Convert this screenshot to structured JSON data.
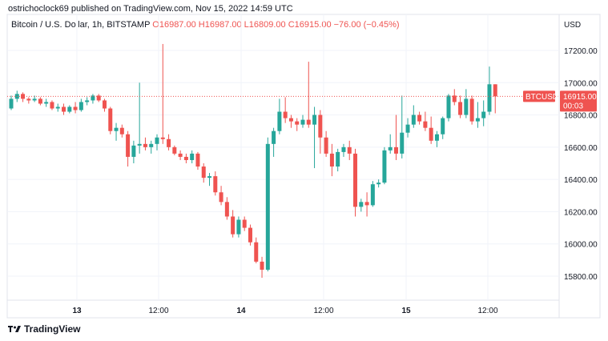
{
  "header": {
    "published_line": "ostrichoclock69 published on TradingView.com, Nov 15, 2022 14:59 UTC"
  },
  "legend": {
    "symbol_desc": "Bitcoin / U.S. Dollar, 1h, BITSTAMP",
    "open": "O16987.00",
    "high": "H16987.00",
    "low": "L16809.00",
    "close": "C16915.00",
    "change": "−76.00 (−0.45%)"
  },
  "price_label": {
    "symbol": "BTCUSD",
    "price": "16915.00",
    "countdown": "00:03"
  },
  "footer": {
    "brand": "TradingView"
  },
  "currency": "USD",
  "colors": {
    "up": "#26a69a",
    "down": "#ef5350",
    "price_line": "#ef5350",
    "grid": "#f0f3fa"
  },
  "chart_data": {
    "type": "candlestick",
    "y_ticks": [
      "17200.00",
      "17000.00",
      "16800.00",
      "16600.00",
      "16400.00",
      "16200.00",
      "16000.00",
      "15800.00"
    ],
    "y_range": [
      15700,
      17300
    ],
    "x_ticks": [
      "13",
      "12:00",
      "14",
      "12:00",
      "15",
      "12:00"
    ],
    "current_price": 16915,
    "candles": [
      [
        16840,
        16920,
        16830,
        16900
      ],
      [
        16900,
        16950,
        16880,
        16930
      ],
      [
        16930,
        16940,
        16880,
        16900
      ],
      [
        16900,
        16910,
        16870,
        16890
      ],
      [
        16890,
        16920,
        16880,
        16900
      ],
      [
        16900,
        16910,
        16860,
        16870
      ],
      [
        16870,
        16900,
        16850,
        16880
      ],
      [
        16880,
        16890,
        16830,
        16840
      ],
      [
        16840,
        16870,
        16820,
        16850
      ],
      [
        16850,
        16870,
        16800,
        16820
      ],
      [
        16820,
        16860,
        16810,
        16850
      ],
      [
        16850,
        16880,
        16810,
        16830
      ],
      [
        16830,
        16900,
        16820,
        16880
      ],
      [
        16880,
        16910,
        16860,
        16890
      ],
      [
        16890,
        16930,
        16870,
        16920
      ],
      [
        16920,
        16930,
        16880,
        16890
      ],
      [
        16890,
        16900,
        16820,
        16840
      ],
      [
        16840,
        16850,
        16680,
        16700
      ],
      [
        16700,
        16750,
        16640,
        16720
      ],
      [
        16720,
        16740,
        16660,
        16680
      ],
      [
        16680,
        16700,
        16480,
        16540
      ],
      [
        16540,
        16640,
        16500,
        16610
      ],
      [
        16610,
        17000,
        16560,
        16620
      ],
      [
        16620,
        16660,
        16580,
        16600
      ],
      [
        16600,
        16640,
        16560,
        16620
      ],
      [
        16620,
        16680,
        16580,
        16660
      ],
      [
        16660,
        17240,
        16620,
        16650
      ],
      [
        16650,
        16680,
        16580,
        16600
      ],
      [
        16600,
        16610,
        16550,
        16560
      ],
      [
        16560,
        16580,
        16520,
        16540
      ],
      [
        16540,
        16560,
        16500,
        16520
      ],
      [
        16520,
        16580,
        16500,
        16560
      ],
      [
        16560,
        16570,
        16460,
        16480
      ],
      [
        16480,
        16500,
        16380,
        16410
      ],
      [
        16410,
        16440,
        16360,
        16420
      ],
      [
        16420,
        16450,
        16300,
        16320
      ],
      [
        16320,
        16360,
        16240,
        16260
      ],
      [
        16260,
        16290,
        16150,
        16170
      ],
      [
        16170,
        16210,
        16040,
        16060
      ],
      [
        16060,
        16170,
        16040,
        16150
      ],
      [
        16150,
        16170,
        16080,
        16100
      ],
      [
        16100,
        16120,
        15990,
        16010
      ],
      [
        16010,
        16040,
        15880,
        15890
      ],
      [
        15890,
        15920,
        15790,
        15840
      ],
      [
        15840,
        16660,
        15830,
        16620
      ],
      [
        16620,
        16720,
        16540,
        16700
      ],
      [
        16700,
        16900,
        16680,
        16820
      ],
      [
        16820,
        16910,
        16750,
        16780
      ],
      [
        16780,
        16800,
        16720,
        16760
      ],
      [
        16760,
        16780,
        16700,
        16740
      ],
      [
        16740,
        16800,
        16720,
        16770
      ],
      [
        16770,
        17130,
        16720,
        16740
      ],
      [
        16740,
        16850,
        16470,
        16800
      ],
      [
        16800,
        16830,
        16560,
        16660
      ],
      [
        16660,
        16700,
        16540,
        16560
      ],
      [
        16560,
        16620,
        16420,
        16480
      ],
      [
        16480,
        16590,
        16450,
        16570
      ],
      [
        16570,
        16620,
        16540,
        16600
      ],
      [
        16600,
        16640,
        16520,
        16560
      ],
      [
        16560,
        16590,
        16170,
        16230
      ],
      [
        16230,
        16280,
        16200,
        16260
      ],
      [
        16260,
        16320,
        16170,
        16240
      ],
      [
        16240,
        16390,
        16230,
        16370
      ],
      [
        16370,
        16400,
        16350,
        16380
      ],
      [
        16380,
        16600,
        16370,
        16580
      ],
      [
        16580,
        16680,
        16560,
        16600
      ],
      [
        16600,
        16800,
        16520,
        16560
      ],
      [
        16560,
        16920,
        16530,
        16690
      ],
      [
        16690,
        16780,
        16660,
        16740
      ],
      [
        16740,
        16860,
        16720,
        16800
      ],
      [
        16800,
        16820,
        16740,
        16760
      ],
      [
        16760,
        16820,
        16700,
        16720
      ],
      [
        16720,
        16790,
        16620,
        16640
      ],
      [
        16640,
        16700,
        16600,
        16680
      ],
      [
        16680,
        16790,
        16650,
        16780
      ],
      [
        16780,
        16930,
        16760,
        16920
      ],
      [
        16920,
        16960,
        16860,
        16880
      ],
      [
        16880,
        16920,
        16780,
        16800
      ],
      [
        16800,
        16960,
        16780,
        16900
      ],
      [
        16900,
        16920,
        16740,
        16760
      ],
      [
        16760,
        16880,
        16720,
        16780
      ],
      [
        16780,
        16890,
        16730,
        16820
      ],
      [
        16820,
        17100,
        16800,
        16990
      ],
      [
        16990,
        16990,
        16810,
        16915
      ]
    ]
  }
}
